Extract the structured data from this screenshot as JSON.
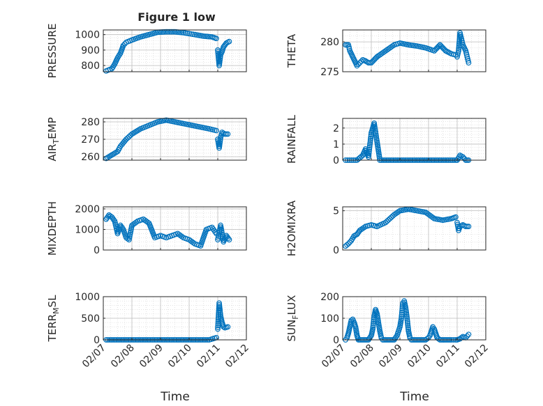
{
  "title": "Figure 1 low",
  "marker_color": "#0072BD",
  "chart_data": [
    {
      "type": "scatter",
      "ylabel": "PRESSURE",
      "ylim": [
        760,
        1030
      ],
      "yticks": [
        800,
        900,
        1000
      ],
      "xticks": [
        "02/07",
        "02/08",
        "02/09",
        "02/10",
        "02/11",
        "02/12"
      ],
      "x_range_days": [
        7,
        12
      ],
      "segments": [
        {
          "x": [
            7.1,
            7.3,
            7.4,
            7.5,
            7.6,
            7.7,
            7.8,
            8.0,
            8.3,
            8.6,
            8.9,
            9.2,
            9.5,
            9.8,
            10.2,
            10.5,
            10.8,
            10.95
          ],
          "y": [
            765,
            780,
            810,
            850,
            880,
            930,
            950,
            965,
            985,
            1000,
            1015,
            1018,
            1018,
            1012,
            1000,
            990,
            985,
            975
          ]
        },
        {
          "x": [
            11.0,
            11.05,
            11.1,
            11.15,
            11.2,
            11.3,
            11.4
          ],
          "y": [
            900,
            800,
            870,
            890,
            920,
            945,
            955
          ]
        }
      ]
    },
    {
      "type": "scatter",
      "ylabel": "THETA",
      "ylim": [
        275,
        282
      ],
      "yticks": [
        275,
        280
      ],
      "xticks": [
        "02/07",
        "02/08",
        "02/09",
        "02/10",
        "02/11",
        "02/12"
      ],
      "x_range_days": [
        7,
        12
      ],
      "segments": [
        {
          "x": [
            7.1,
            7.2,
            7.25,
            7.3,
            7.4,
            7.5,
            7.6,
            7.7,
            7.8,
            7.9,
            8.0,
            8.2,
            8.5,
            8.8,
            9.0,
            9.3,
            9.6,
            9.9,
            10.2,
            10.4,
            10.6,
            10.8,
            10.95
          ],
          "y": [
            279.5,
            279.5,
            278.5,
            278.0,
            277.0,
            276.0,
            276.5,
            277.0,
            276.8,
            276.5,
            276.5,
            277.5,
            278.5,
            279.5,
            279.8,
            279.5,
            279.3,
            279.0,
            278.5,
            279.5,
            278.5,
            278.0,
            277.8
          ]
        },
        {
          "x": [
            11.0,
            11.05,
            11.1,
            11.15,
            11.2,
            11.3,
            11.35,
            11.4
          ],
          "y": [
            277.5,
            278.5,
            281.5,
            280.5,
            279.5,
            278.5,
            277.5,
            276.5
          ]
        }
      ]
    },
    {
      "type": "scatter",
      "ylabel": "AIR_TEMP",
      "ylim": [
        258,
        282
      ],
      "yticks": [
        260,
        270,
        280
      ],
      "xticks": [
        "02/07",
        "02/08",
        "02/09",
        "02/10",
        "02/11",
        "02/12"
      ],
      "x_range_days": [
        7,
        12
      ],
      "segments": [
        {
          "x": [
            7.1,
            7.3,
            7.5,
            7.6,
            7.8,
            8.0,
            8.3,
            8.6,
            8.9,
            9.2,
            9.5,
            9.8,
            10.1,
            10.4,
            10.7,
            10.95
          ],
          "y": [
            259,
            261,
            263,
            266,
            270,
            273,
            276,
            278,
            280,
            281,
            280,
            279,
            278,
            277,
            276,
            275
          ]
        },
        {
          "x": [
            11.0,
            11.05,
            11.1,
            11.15,
            11.25,
            11.35
          ],
          "y": [
            270,
            265,
            271,
            274,
            273,
            273
          ]
        }
      ]
    },
    {
      "type": "scatter",
      "ylabel": "RAINFALL",
      "ylim": [
        0,
        2.6
      ],
      "yticks": [
        0,
        1,
        2
      ],
      "xticks": [
        "02/07",
        "02/08",
        "02/09",
        "02/10",
        "02/11",
        "02/12"
      ],
      "x_range_days": [
        7,
        12
      ],
      "segments": [
        {
          "x": [
            7.1,
            7.3,
            7.5,
            7.7,
            7.8,
            7.9,
            8.0,
            8.1,
            8.3,
            8.6,
            8.9,
            9.2,
            9.5,
            9.8,
            10.1,
            10.4,
            10.7,
            10.95
          ],
          "y": [
            0,
            0,
            0,
            0.3,
            0.7,
            0.2,
            1.7,
            2.3,
            0,
            0,
            0,
            0,
            0,
            0,
            0,
            0,
            0,
            0
          ]
        },
        {
          "x": [
            11.0,
            11.1,
            11.2,
            11.3,
            11.4
          ],
          "y": [
            0,
            0.3,
            0.2,
            0,
            0
          ]
        }
      ]
    },
    {
      "type": "scatter",
      "ylabel": "MIXDEPTH",
      "ylim": [
        0,
        2100
      ],
      "yticks": [
        0,
        1000,
        2000
      ],
      "xticks": [
        "02/07",
        "02/08",
        "02/09",
        "02/10",
        "02/11",
        "02/12"
      ],
      "x_range_days": [
        7,
        12
      ],
      "segments": [
        {
          "x": [
            7.1,
            7.2,
            7.3,
            7.4,
            7.5,
            7.6,
            7.7,
            7.8,
            7.9,
            8.0,
            8.2,
            8.4,
            8.6,
            8.8,
            9.0,
            9.2,
            9.4,
            9.6,
            9.8,
            10.0,
            10.2,
            10.4,
            10.6,
            10.8,
            10.95
          ],
          "y": [
            1500,
            1700,
            1600,
            1400,
            800,
            1200,
            1000,
            600,
            500,
            1200,
            1400,
            1500,
            1300,
            600,
            700,
            600,
            700,
            800,
            600,
            500,
            300,
            200,
            1000,
            1100,
            800
          ]
        },
        {
          "x": [
            11.0,
            11.1,
            11.2,
            11.3,
            11.4
          ],
          "y": [
            500,
            1200,
            400,
            700,
            500
          ]
        }
      ]
    },
    {
      "type": "scatter",
      "ylabel": "H2OMIXRA",
      "ylim": [
        0,
        5.5
      ],
      "yticks": [
        0,
        5
      ],
      "xticks": [
        "02/07",
        "02/08",
        "02/09",
        "02/10",
        "02/11",
        "02/12"
      ],
      "x_range_days": [
        7,
        12
      ],
      "segments": [
        {
          "x": [
            7.1,
            7.2,
            7.3,
            7.4,
            7.5,
            7.6,
            7.8,
            8.0,
            8.2,
            8.5,
            8.8,
            9.0,
            9.3,
            9.6,
            9.9,
            10.2,
            10.5,
            10.8,
            10.95
          ],
          "y": [
            0.5,
            0.8,
            1.2,
            1.8,
            2.0,
            2.5,
            3.0,
            3.2,
            3.0,
            3.5,
            4.5,
            5.0,
            5.2,
            5.0,
            4.8,
            4.0,
            3.8,
            4.0,
            4.2
          ]
        },
        {
          "x": [
            11.0,
            11.05,
            11.1,
            11.2,
            11.3,
            11.4
          ],
          "y": [
            3.5,
            2.5,
            3.0,
            3.2,
            3.0,
            3.0
          ]
        }
      ]
    },
    {
      "type": "scatter",
      "ylabel": "TERR_MSL",
      "ylim": [
        0,
        1000
      ],
      "yticks": [
        0,
        500,
        1000
      ],
      "xticks": [
        "02/07",
        "02/08",
        "02/09",
        "02/10",
        "02/11",
        "02/12"
      ],
      "x_range_days": [
        7,
        12
      ],
      "segments": [
        {
          "x": [
            7.1,
            7.4,
            7.7,
            8.0,
            8.3,
            8.6,
            8.9,
            9.2,
            9.5,
            9.8,
            10.1,
            10.4,
            10.7,
            10.95
          ],
          "y": [
            0,
            0,
            0,
            0,
            0,
            0,
            0,
            0,
            0,
            0,
            0,
            0,
            0,
            50
          ]
        },
        {
          "x": [
            11.0,
            11.05,
            11.1,
            11.15,
            11.2,
            11.25,
            11.35
          ],
          "y": [
            250,
            850,
            550,
            400,
            300,
            280,
            300
          ]
        }
      ]
    },
    {
      "type": "scatter",
      "ylabel": "SUN_FLUX",
      "ylim": [
        0,
        200
      ],
      "yticks": [
        0,
        100,
        200
      ],
      "xticks": [
        "02/07",
        "02/08",
        "02/09",
        "02/10",
        "02/11",
        "02/12"
      ],
      "x_range_days": [
        7,
        12
      ],
      "segments": [
        {
          "x": [
            7.1,
            7.15,
            7.2,
            7.25,
            7.3,
            7.35,
            7.4,
            7.45,
            7.5,
            7.55,
            7.6,
            7.7,
            7.8,
            7.9,
            8.0,
            8.05,
            8.1,
            8.15,
            8.2,
            8.25,
            8.3,
            8.35,
            8.4,
            8.5,
            8.6,
            8.7,
            8.8,
            8.9,
            9.0,
            9.05,
            9.1,
            9.15,
            9.2,
            9.25,
            9.3,
            9.35,
            9.4,
            9.5,
            9.6,
            9.7,
            9.8,
            9.9,
            10.0,
            10.05,
            10.1,
            10.15,
            10.2,
            10.25,
            10.3,
            10.4,
            10.5,
            10.6,
            10.7,
            10.8,
            10.95
          ],
          "y": [
            0,
            10,
            30,
            60,
            90,
            95,
            80,
            60,
            20,
            0,
            0,
            0,
            0,
            0,
            20,
            50,
            110,
            140,
            120,
            80,
            40,
            10,
            0,
            0,
            0,
            0,
            0,
            20,
            60,
            100,
            170,
            180,
            150,
            100,
            40,
            10,
            0,
            0,
            0,
            0,
            0,
            0,
            10,
            20,
            40,
            60,
            50,
            30,
            10,
            0,
            0,
            0,
            0,
            0,
            0
          ]
        },
        {
          "x": [
            11.0,
            11.1,
            11.2,
            11.3,
            11.4
          ],
          "y": [
            0,
            5,
            15,
            10,
            25
          ]
        }
      ]
    }
  ],
  "xlabel": "Time"
}
